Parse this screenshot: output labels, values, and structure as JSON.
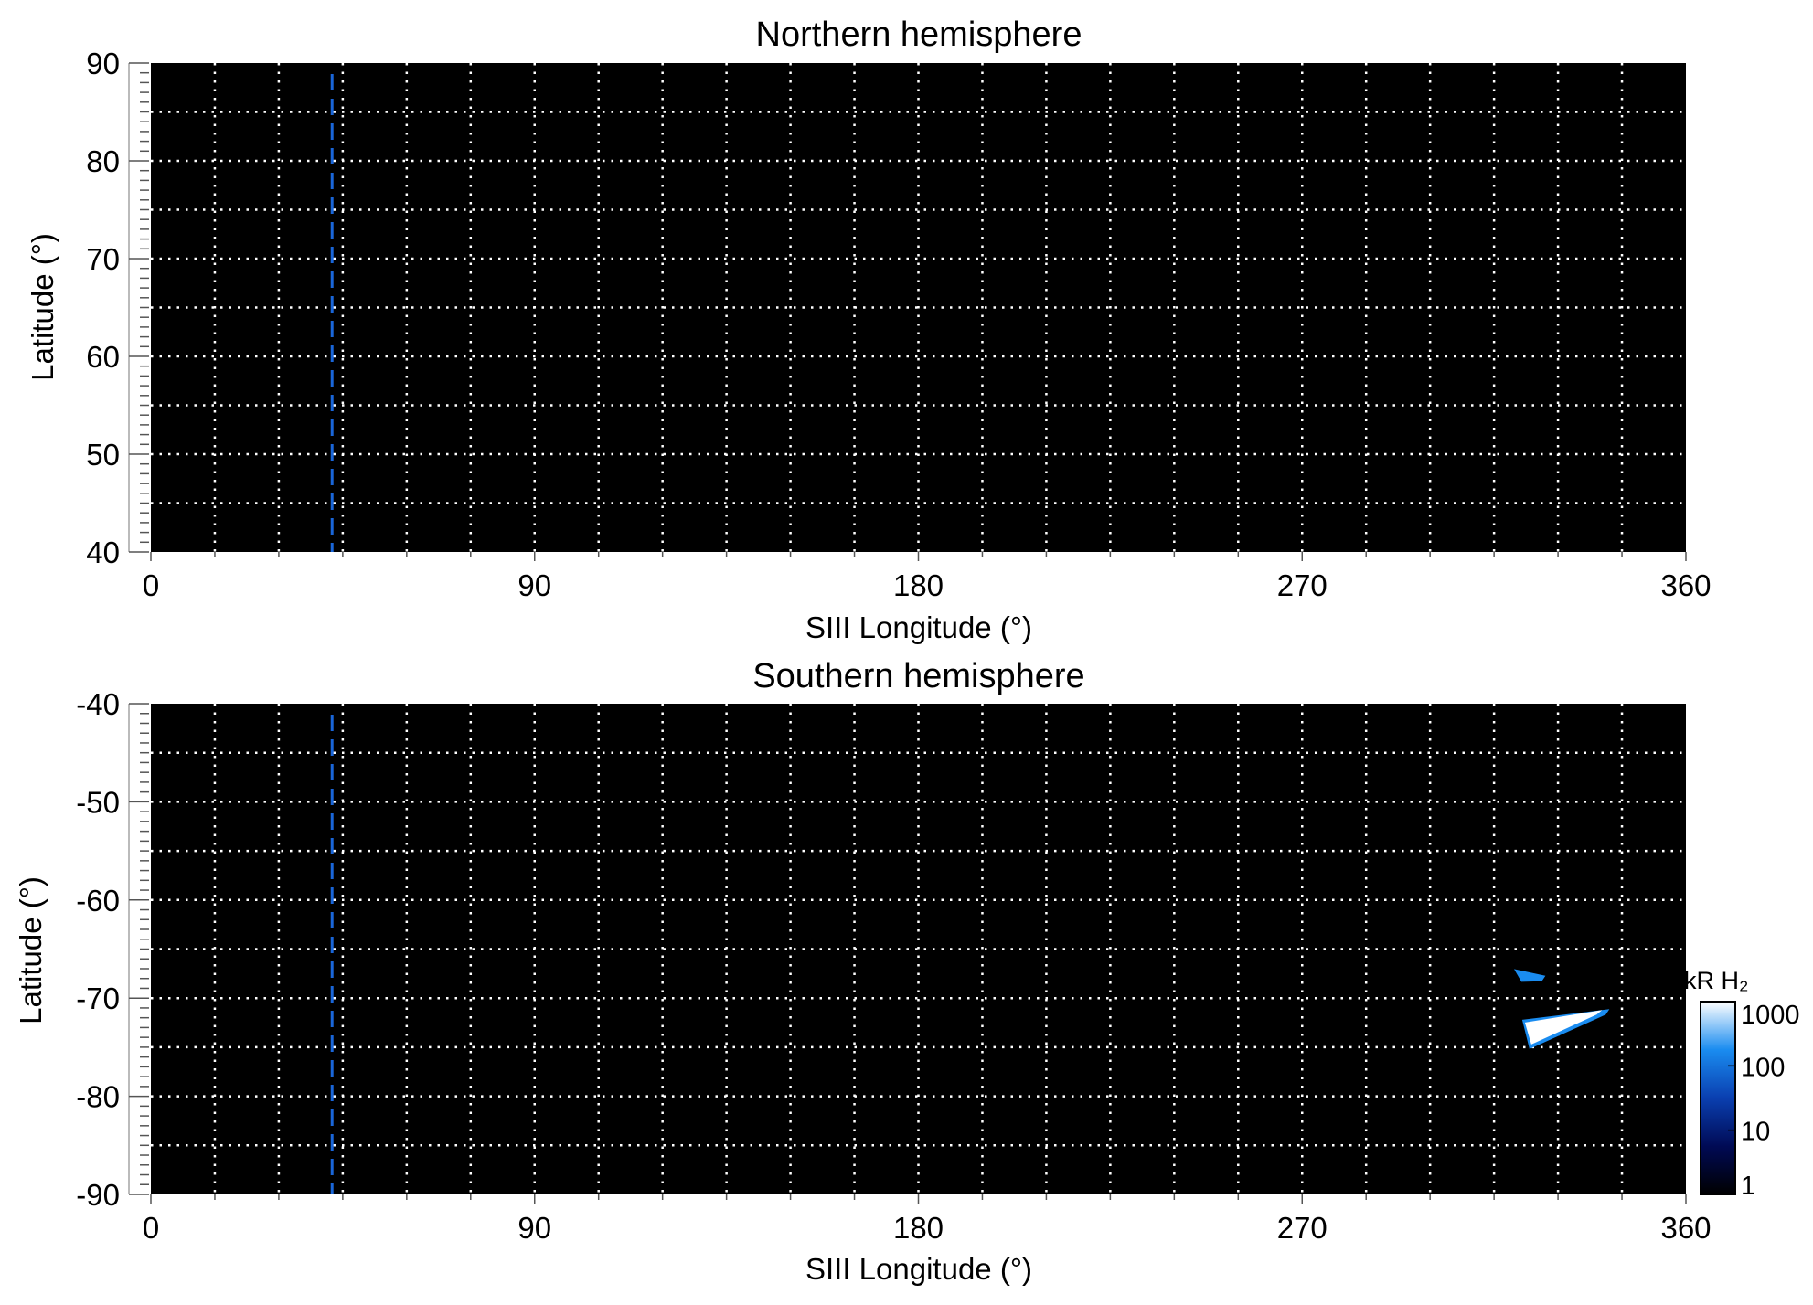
{
  "chart_data": [
    {
      "type": "heatmap",
      "title": "Northern hemisphere",
      "xlabel": "SIII Longitude (°)",
      "ylabel": "Latitude (°)",
      "xlim": [
        0,
        360
      ],
      "ylim": [
        40,
        90
      ],
      "xticks": [
        "0",
        "90",
        "180",
        "270",
        "360"
      ],
      "yticks": [
        "40",
        "50",
        "60",
        "70",
        "80",
        "90"
      ],
      "grid": true,
      "grid_step_lon": 15,
      "grid_step_lat": 5,
      "reference_line_lon": 42.5,
      "reference_line_color": "#1a66d9",
      "background_color": "#000000",
      "emission_regions": []
    },
    {
      "type": "heatmap",
      "title": "Southern hemisphere",
      "xlabel": "SIII Longitude (°)",
      "ylabel": "Latitude (°)",
      "xlim": [
        0,
        360
      ],
      "ylim": [
        -90,
        -40
      ],
      "xticks": [
        "0",
        "90",
        "180",
        "270",
        "360"
      ],
      "yticks": [
        "-40",
        "-50",
        "-60",
        "-70",
        "-80",
        "-90"
      ],
      "grid": true,
      "grid_step_lon": 15,
      "grid_step_lat": 5,
      "reference_line_lon": 42.5,
      "reference_line_color": "#1a66d9",
      "background_color": "#000000",
      "emission_regions": [
        {
          "lon": [
            319.7,
            326.2
          ],
          "lat": [
            -67.6,
            -68.0
          ],
          "intensity_kR": 200
        },
        {
          "lon": [
            321.6,
            341.2
          ],
          "lat": [
            -73.6,
            -71.4
          ],
          "intensity_kR": 1000
        }
      ],
      "colorbar": {
        "label": "kR H₂",
        "scale": "log",
        "range": [
          1,
          1000
        ],
        "ticks": [
          "1",
          "10",
          "100",
          "1000"
        ],
        "colors": [
          "#000000",
          "#000a55",
          "#0a3fb0",
          "#1a8cf0",
          "#ffffff"
        ]
      }
    }
  ]
}
